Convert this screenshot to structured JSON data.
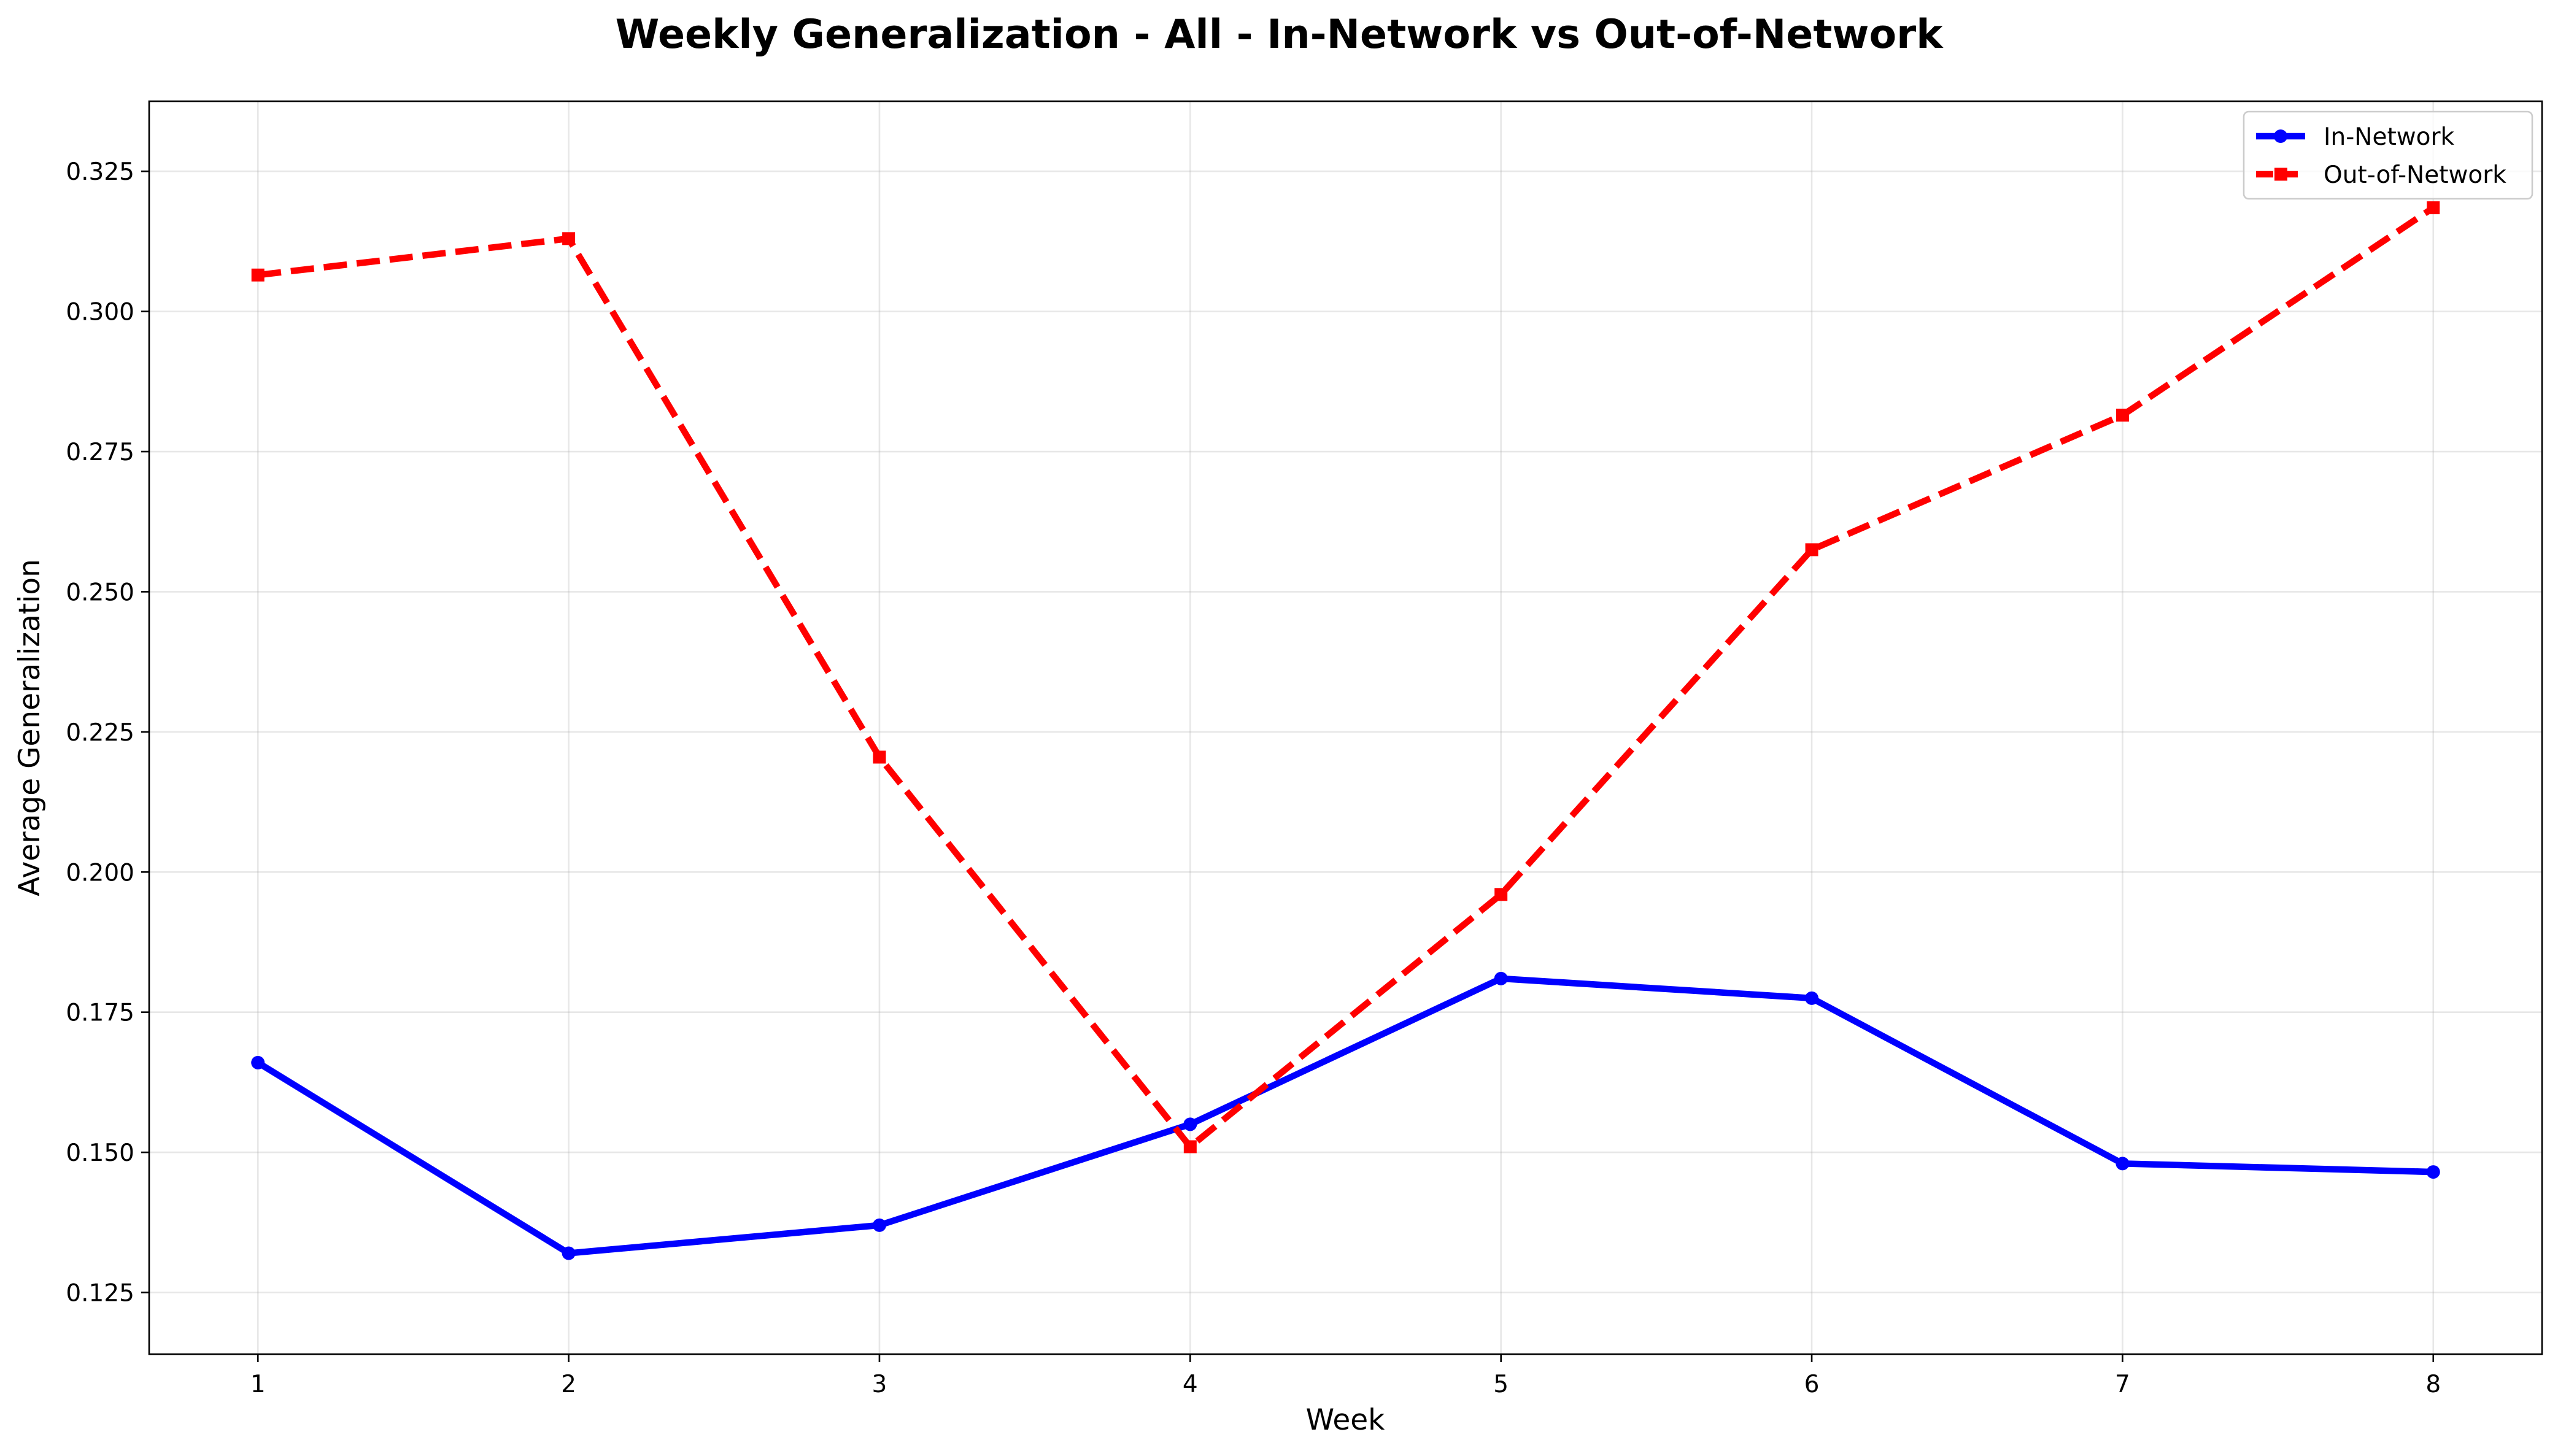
{
  "chart_data": {
    "type": "line",
    "title": "Weekly Generalization - All - In-Network vs Out-of-Network",
    "xlabel": "Week",
    "ylabel": "Average Generalization",
    "x": [
      1,
      2,
      3,
      4,
      5,
      6,
      7,
      8
    ],
    "xticks": [
      "1",
      "2",
      "3",
      "4",
      "5",
      "6",
      "7",
      "8"
    ],
    "xlim": [
      0.65,
      8.35
    ],
    "ylim": [
      0.114,
      0.3375
    ],
    "yticks": [
      0.125,
      0.15,
      0.175,
      0.2,
      0.225,
      0.25,
      0.275,
      0.3,
      0.325
    ],
    "ytick_labels": [
      "0.125",
      "0.150",
      "0.175",
      "0.200",
      "0.225",
      "0.250",
      "0.275",
      "0.300",
      "0.325"
    ],
    "grid": true,
    "legend_position": "top-right",
    "series": [
      {
        "name": "In-Network",
        "color": "#0000ff",
        "line_style": "solid",
        "marker": "circle",
        "values": [
          0.166,
          0.132,
          0.137,
          0.155,
          0.181,
          0.1775,
          0.148,
          0.1465
        ]
      },
      {
        "name": "Out-of-Network",
        "color": "#ff0000",
        "line_style": "dashed",
        "marker": "square",
        "values": [
          0.3065,
          0.313,
          0.2205,
          0.151,
          0.196,
          0.2575,
          0.2815,
          0.3185
        ]
      }
    ]
  }
}
